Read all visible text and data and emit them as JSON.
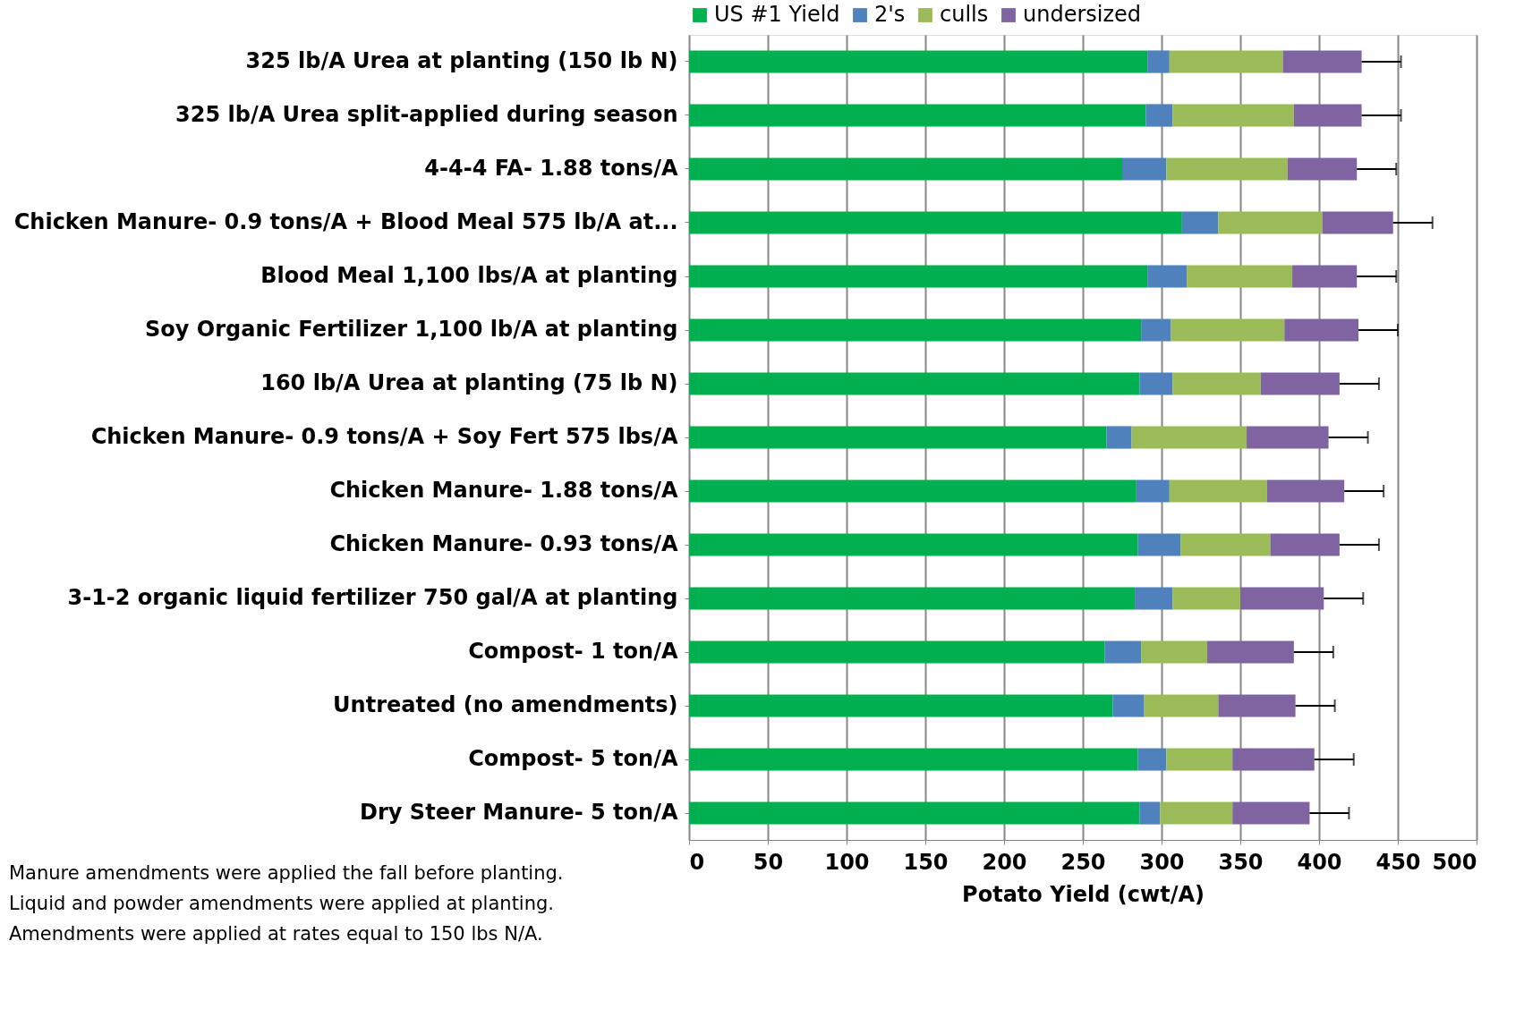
{
  "chart_data": {
    "type": "bar",
    "orientation": "horizontal",
    "stacked": true,
    "categories": [
      "325 lb/A Urea at planting (150 lb N)",
      "325 lb/A Urea split-applied during season",
      "4-4-4 FA- 1.88 tons/A",
      "Chicken Manure- 0.9 tons/A + Blood Meal 575 lb/A at...",
      "Blood Meal 1,100 lbs/A at planting",
      "Soy Organic Fertilizer 1,100 lb/A at planting",
      "160 lb/A Urea at planting (75 lb N)",
      "Chicken Manure- 0.9 tons/A + Soy Fert 575 lbs/A",
      "Chicken Manure- 1.88 tons/A",
      "Chicken Manure- 0.93 tons/A",
      "3-1-2 organic liquid fertilizer 750 gal/A at planting",
      "Compost- 1 ton/A",
      "Untreated (no amendments)",
      "Compost- 5 ton/A",
      "Dry Steer Manure- 5 ton/A"
    ],
    "series": [
      {
        "name": "US #1 Yield",
        "color": "#00b050",
        "values": [
          291,
          290,
          275,
          313,
          291,
          287,
          286,
          265,
          284,
          285,
          283,
          264,
          269,
          285,
          286
        ]
      },
      {
        "name": "2's",
        "color": "#4f81bd",
        "values": [
          14,
          17,
          28,
          23,
          25,
          19,
          21,
          16,
          21,
          27,
          24,
          23,
          20,
          18,
          13
        ]
      },
      {
        "name": "culls",
        "color": "#9bbb59",
        "values": [
          72,
          77,
          77,
          66,
          67,
          72,
          56,
          73,
          62,
          57,
          43,
          42,
          47,
          42,
          46
        ]
      },
      {
        "name": "undersized",
        "color": "#8064a2",
        "values": [
          50,
          43,
          44,
          45,
          41,
          47,
          50,
          52,
          49,
          44,
          53,
          55,
          49,
          52,
          49
        ],
        "errors": [
          [
            427,
            452
          ],
          [
            427,
            452
          ],
          [
            424,
            449
          ],
          [
            447,
            472
          ],
          [
            424,
            449
          ],
          [
            425,
            450
          ],
          [
            413,
            438
          ],
          [
            406,
            431
          ],
          [
            416,
            441
          ],
          [
            413,
            438
          ],
          [
            403,
            428
          ],
          [
            384,
            409
          ],
          [
            385,
            410
          ],
          [
            397,
            422
          ],
          [
            394,
            419
          ]
        ]
      }
    ],
    "xlabel": "Potato Yield (cwt/A)",
    "xlim": [
      0,
      500
    ],
    "xticks": [
      0,
      50,
      100,
      150,
      200,
      250,
      300,
      350,
      400,
      450,
      500
    ],
    "grid": "x",
    "legend": "top",
    "annotations": [
      "Manure amendments were applied the fall before planting.",
      "Liquid and powder amendments were applied at planting.",
      "Amendments were applied at rates equal to 150 lbs N/A."
    ]
  }
}
